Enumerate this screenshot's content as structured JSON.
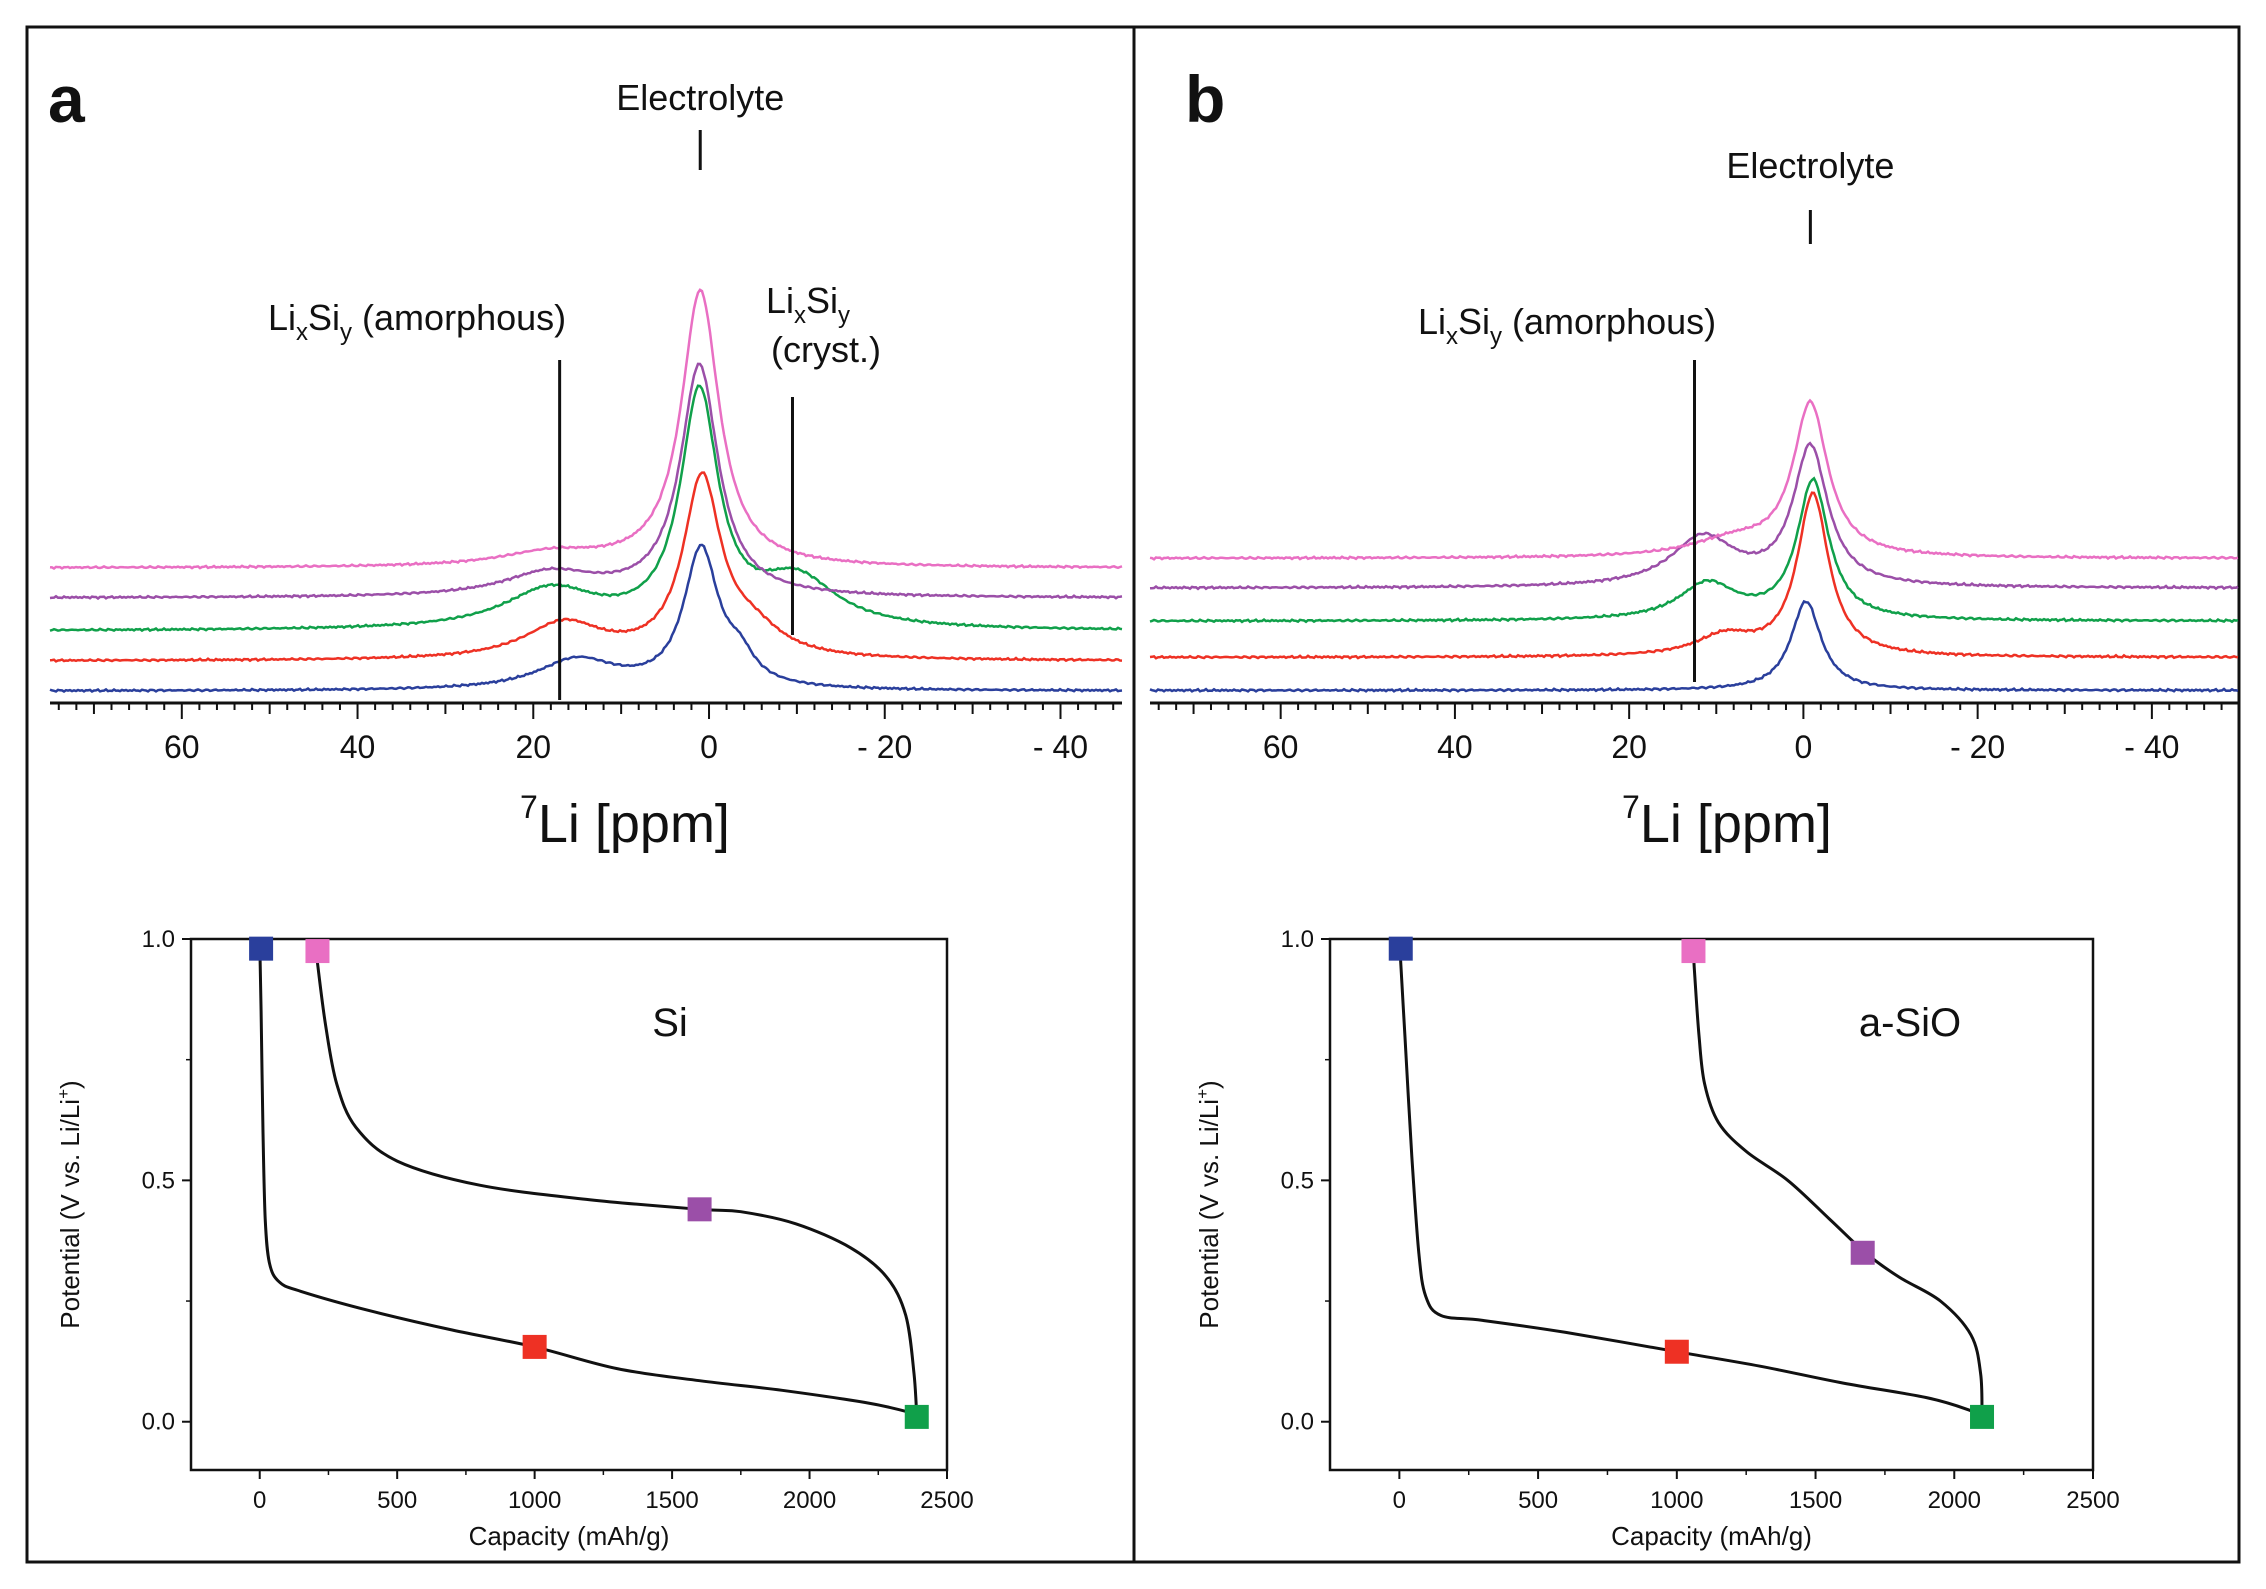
{
  "colors": {
    "blue": "#2a3f9c",
    "red": "#ee3124",
    "green": "#10a04a",
    "purple": "#9b4fa8",
    "pink": "#e96fc3",
    "curve": "#111111"
  },
  "chart_data": [
    {
      "panel": "a",
      "type": "line",
      "title": "a",
      "xlabel_sup": "7",
      "xlabel": "Li [ppm]",
      "xlim": [
        75,
        -47
      ],
      "xticks": [
        60,
        40,
        20,
        0,
        -20,
        -40
      ],
      "xtick_labels": [
        "60",
        "40",
        "20",
        "0",
        "- 20",
        "- 40"
      ],
      "annotations": [
        {
          "name": "electrolyte",
          "text": "Electrolyte",
          "x": 1
        },
        {
          "name": "amorphous",
          "pre": "Li",
          "sub1": "x",
          "mid": "Si",
          "sub2": "y",
          "post": " (amorphous)",
          "x": 17
        },
        {
          "name": "crystalline",
          "pre": "Li",
          "sub1": "x",
          "mid": "Si",
          "sub2": "y",
          "post": "",
          "line2": "(cryst.)",
          "x": -9.5
        }
      ],
      "series": [
        {
          "name": "blue",
          "color": "blue",
          "baseline": 0.02,
          "peaks": [
            {
              "x": 0.9,
              "h": 0.46,
              "w": 2.4
            },
            {
              "x": 15,
              "h": 0.1,
              "w": 5.5
            },
            {
              "x": -3.5,
              "h": 0.08,
              "w": 2.0
            }
          ]
        },
        {
          "name": "red",
          "color": "red",
          "baseline": 0.12,
          "peaks": [
            {
              "x": 0.8,
              "h": 0.59,
              "w": 2.6
            },
            {
              "x": 16.5,
              "h": 0.12,
              "w": 5.5
            },
            {
              "x": -5,
              "h": 0.08,
              "w": 4
            }
          ]
        },
        {
          "name": "green",
          "color": "green",
          "baseline": 0.22,
          "peaks": [
            {
              "x": 1.1,
              "h": 0.77,
              "w": 2.6
            },
            {
              "x": 18,
              "h": 0.13,
              "w": 6.5
            },
            {
              "x": -10,
              "h": 0.16,
              "w": 5.5
            }
          ]
        },
        {
          "name": "purple",
          "color": "purple",
          "baseline": 0.33,
          "peaks": [
            {
              "x": 1.1,
              "h": 0.77,
              "w": 2.6
            },
            {
              "x": 18,
              "h": 0.08,
              "w": 6.5
            }
          ]
        },
        {
          "name": "pink",
          "color": "pink",
          "baseline": 0.43,
          "peaks": [
            {
              "x": 1.0,
              "h": 0.92,
              "w": 2.6
            },
            {
              "x": 18,
              "h": 0.045,
              "w": 7
            }
          ]
        }
      ]
    },
    {
      "panel": "b",
      "type": "line",
      "title": "b",
      "xlabel_sup": "7",
      "xlabel": "Li [ppm]",
      "xlim": [
        75,
        -50
      ],
      "xticks": [
        60,
        40,
        20,
        0,
        -20,
        -40
      ],
      "xtick_labels": [
        "60",
        "40",
        "20",
        "0",
        "- 20",
        "- 40"
      ],
      "annotations": [
        {
          "name": "electrolyte",
          "text": "Electrolyte",
          "x": -0.8
        },
        {
          "name": "amorphous",
          "pre": "Li",
          "sub1": "x",
          "mid": "Si",
          "sub2": "y",
          "post": " (amorphous)",
          "x": 12.5
        }
      ],
      "series": [
        {
          "name": "blue",
          "color": "blue",
          "baseline": 0.02,
          "peaks": [
            {
              "x": -0.3,
              "h": 0.27,
              "w": 2.1
            }
          ]
        },
        {
          "name": "red",
          "color": "red",
          "baseline": 0.12,
          "peaks": [
            {
              "x": -1.1,
              "h": 0.49,
              "w": 2.2
            },
            {
              "x": 9,
              "h": 0.06,
              "w": 4
            }
          ]
        },
        {
          "name": "green",
          "color": "green",
          "baseline": 0.23,
          "peaks": [
            {
              "x": -1.1,
              "h": 0.42,
              "w": 2.2
            },
            {
              "x": 11,
              "h": 0.11,
              "w": 4
            }
          ]
        },
        {
          "name": "purple",
          "color": "purple",
          "baseline": 0.33,
          "peaks": [
            {
              "x": -0.8,
              "h": 0.42,
              "w": 2.4
            },
            {
              "x": 11.5,
              "h": 0.15,
              "w": 4.5
            }
          ]
        },
        {
          "name": "pink",
          "color": "pink",
          "baseline": 0.42,
          "peaks": [
            {
              "x": -0.8,
              "h": 0.46,
              "w": 2.4
            },
            {
              "x": 8,
              "h": 0.05,
              "w": 6
            }
          ]
        }
      ]
    },
    {
      "panel": "a-inset",
      "type": "line",
      "title": "Si",
      "xlabel": "Capacity (mAh/g)",
      "ylabel_main": "Potential (V vs. Li/Li",
      "ylabel_sup": "+",
      "ylabel_end": ")",
      "xlim": [
        -250,
        2500
      ],
      "ylim": [
        -0.1,
        1.0
      ],
      "xticks": [
        0,
        500,
        1000,
        1500,
        2000,
        2500
      ],
      "yticks": [
        0.0,
        0.5,
        1.0
      ],
      "xtick_labels": [
        "0",
        "500",
        "1000",
        "1500",
        "2000",
        "2500"
      ],
      "ytick_labels": [
        "0.0",
        "0.5",
        "1.0"
      ],
      "discharge": [
        [
          0,
          1.0
        ],
        [
          5,
          0.85
        ],
        [
          12,
          0.6
        ],
        [
          20,
          0.42
        ],
        [
          35,
          0.33
        ],
        [
          70,
          0.29
        ],
        [
          150,
          0.27
        ],
        [
          400,
          0.23
        ],
        [
          700,
          0.19
        ],
        [
          1000,
          0.155
        ],
        [
          1300,
          0.11
        ],
        [
          1600,
          0.085
        ],
        [
          1900,
          0.065
        ],
        [
          2200,
          0.04
        ],
        [
          2360,
          0.02
        ],
        [
          2390,
          0.01
        ]
      ],
      "charge": [
        [
          2390,
          0.01
        ],
        [
          2380,
          0.1
        ],
        [
          2350,
          0.22
        ],
        [
          2280,
          0.3
        ],
        [
          2150,
          0.36
        ],
        [
          1950,
          0.41
        ],
        [
          1750,
          0.435
        ],
        [
          1600,
          0.44
        ],
        [
          1200,
          0.46
        ],
        [
          800,
          0.49
        ],
        [
          500,
          0.54
        ],
        [
          350,
          0.61
        ],
        [
          280,
          0.7
        ],
        [
          240,
          0.82
        ],
        [
          210,
          0.95
        ],
        [
          205,
          0.98
        ]
      ],
      "markers": [
        {
          "name": "blue",
          "color": "blue",
          "x": 5,
          "y": 0.98
        },
        {
          "name": "pink",
          "color": "pink",
          "x": 210,
          "y": 0.975
        },
        {
          "name": "purple",
          "color": "purple",
          "x": 1600,
          "y": 0.44
        },
        {
          "name": "red",
          "color": "red",
          "x": 1000,
          "y": 0.155
        },
        {
          "name": "green",
          "color": "green",
          "x": 2390,
          "y": 0.01
        }
      ]
    },
    {
      "panel": "b-inset",
      "type": "line",
      "title": "a-SiO",
      "xlabel": "Capacity (mAh/g)",
      "ylabel_main": "Potential (V vs. Li/Li",
      "ylabel_sup": "+",
      "ylabel_end": ")",
      "xlim": [
        -250,
        2500
      ],
      "ylim": [
        -0.1,
        1.0
      ],
      "xticks": [
        0,
        500,
        1000,
        1500,
        2000,
        2500
      ],
      "yticks": [
        0.0,
        0.5,
        1.0
      ],
      "xtick_labels": [
        "0",
        "500",
        "1000",
        "1500",
        "2000",
        "2500"
      ],
      "ytick_labels": [
        "0.0",
        "0.5",
        "1.0"
      ],
      "discharge": [
        [
          0,
          1.0
        ],
        [
          20,
          0.8
        ],
        [
          45,
          0.55
        ],
        [
          70,
          0.35
        ],
        [
          95,
          0.26
        ],
        [
          150,
          0.22
        ],
        [
          300,
          0.21
        ],
        [
          600,
          0.185
        ],
        [
          1000,
          0.145
        ],
        [
          1300,
          0.115
        ],
        [
          1600,
          0.08
        ],
        [
          1900,
          0.05
        ],
        [
          2050,
          0.025
        ],
        [
          2100,
          0.01
        ]
      ],
      "charge": [
        [
          2100,
          0.01
        ],
        [
          2095,
          0.1
        ],
        [
          2060,
          0.18
        ],
        [
          1950,
          0.25
        ],
        [
          1800,
          0.3
        ],
        [
          1680,
          0.35
        ],
        [
          1550,
          0.42
        ],
        [
          1400,
          0.5
        ],
        [
          1250,
          0.56
        ],
        [
          1150,
          0.62
        ],
        [
          1100,
          0.7
        ],
        [
          1080,
          0.8
        ],
        [
          1065,
          0.92
        ],
        [
          1060,
          0.97
        ]
      ],
      "markers": [
        {
          "name": "blue",
          "color": "blue",
          "x": 5,
          "y": 0.98
        },
        {
          "name": "pink",
          "color": "pink",
          "x": 1060,
          "y": 0.975
        },
        {
          "name": "purple",
          "color": "purple",
          "x": 1670,
          "y": 0.35
        },
        {
          "name": "red",
          "color": "red",
          "x": 1000,
          "y": 0.145
        },
        {
          "name": "green",
          "color": "green",
          "x": 2100,
          "y": 0.01
        }
      ]
    }
  ]
}
